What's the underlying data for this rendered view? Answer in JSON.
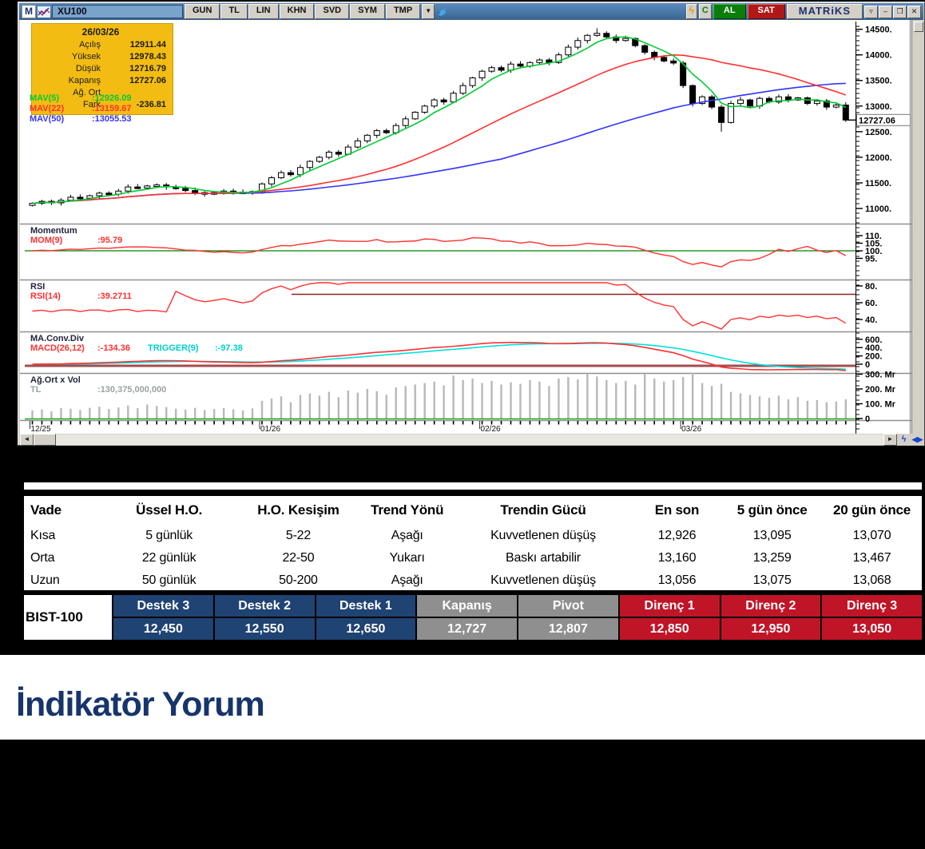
{
  "titlebar": {
    "logo": "M",
    "symbol": "XU100",
    "modes": [
      "GUN",
      "TL",
      "LIN",
      "KHN",
      "SVD",
      "SYM",
      "TMP"
    ],
    "dropdown": "▼",
    "bolt": "ϟ",
    "cycle": "C",
    "buy": "AL",
    "sell": "SAT",
    "brand": "MATRiKS",
    "win_buttons": [
      "▿",
      "–",
      "❐",
      "✕"
    ]
  },
  "infobox": {
    "date": "26/03/26",
    "rows": [
      {
        "label": "Açılış",
        "value": "12911.44"
      },
      {
        "label": "Yüksek",
        "value": "12978.43"
      },
      {
        "label": "Düşük",
        "value": "12716.79"
      },
      {
        "label": "Kapanış",
        "value": "12727.06"
      },
      {
        "label": "Ağ. Ort",
        "value": ""
      },
      {
        "label": "Fark",
        "value": "-236.81"
      }
    ]
  },
  "mav_legend": [
    {
      "label": "MAV(5)",
      "value": ":12926.09",
      "color": "#00cc33"
    },
    {
      "label": "MAV(22)",
      "value": ":13159.67",
      "color": "#ff3030"
    },
    {
      "label": "MAV(50)",
      "value": ":13055.53",
      "color": "#3333ff"
    }
  ],
  "panels": {
    "momentum": {
      "title": "Momentum",
      "legend": "MOM(9)",
      "value": ":95.79"
    },
    "rsi": {
      "title": "RSI",
      "legend": "RSI(14)",
      "value": ":39.2711"
    },
    "macd": {
      "title": "MA.Conv.Div",
      "legend": "MACD(26,12)",
      "value": ":-134.36",
      "legend2": "TRIGGER(9)",
      "value2": ":-97.38"
    },
    "volume": {
      "title": "Ağ.Ort x Vol",
      "legend": "TL",
      "value": ":130,375,000,000"
    }
  },
  "scrollbar": {
    "left": "◄",
    "right": "►",
    "quick": "ϟ",
    "nav": "◀▶"
  },
  "chart_data": {
    "type": "candlestick",
    "symbol": "XU100",
    "closes": [
      11100,
      11140,
      11110,
      11160,
      11220,
      11200,
      11250,
      11300,
      11280,
      11340,
      11420,
      11400,
      11440,
      11460,
      11420,
      11390,
      11350,
      11310,
      11290,
      11310,
      11340,
      11320,
      11300,
      11330,
      11480,
      11600,
      11700,
      11660,
      11800,
      11920,
      12000,
      12100,
      12060,
      12200,
      12320,
      12430,
      12520,
      12480,
      12620,
      12750,
      12880,
      13000,
      13120,
      13080,
      13250,
      13400,
      13550,
      13680,
      13750,
      13700,
      13820,
      13780,
      13850,
      13900,
      13850,
      14000,
      14150,
      14280,
      14380,
      14420,
      14350,
      14280,
      14320,
      14180,
      14050,
      13950,
      13880,
      13840,
      13400,
      13050,
      13180,
      12980,
      12680,
      13050,
      13120,
      13000,
      13150,
      13080,
      13180,
      13120,
      13160,
      13050,
      13100,
      12980,
      13020,
      12727
    ],
    "volumes": [
      55,
      62,
      48,
      70,
      66,
      58,
      72,
      80,
      64,
      75,
      88,
      70,
      95,
      85,
      78,
      66,
      60,
      72,
      58,
      64,
      70,
      62,
      55,
      68,
      120,
      135,
      150,
      110,
      160,
      170,
      155,
      180,
      145,
      190,
      175,
      200,
      185,
      160,
      210,
      220,
      230,
      240,
      250,
      225,
      290,
      260,
      270,
      240,
      255,
      230,
      245,
      235,
      260,
      250,
      220,
      270,
      280,
      265,
      300,
      285,
      260,
      240,
      255,
      230,
      300,
      270,
      250,
      260,
      280,
      310,
      240,
      220,
      235,
      180,
      170,
      160,
      150,
      140,
      155,
      130,
      145,
      120,
      125,
      110,
      115,
      130
    ],
    "ma_periods": [
      5,
      22,
      50
    ],
    "price_ticks": [
      {
        "v": 14500,
        "t": "14500."
      },
      {
        "v": 14000,
        "t": "14000."
      },
      {
        "v": 13500,
        "t": "13500."
      },
      {
        "v": 13000,
        "t": "13000."
      },
      {
        "v": 12500,
        "t": "12500."
      },
      {
        "v": 12000,
        "t": "12000."
      },
      {
        "v": 11500,
        "t": "11500."
      },
      {
        "v": 11000,
        "t": "11000."
      }
    ],
    "mom_ticks": [
      {
        "v": 110,
        "t": "110."
      },
      {
        "v": 105,
        "t": "105."
      },
      {
        "v": 100,
        "t": "100."
      },
      {
        "v": 95,
        "t": "95."
      }
    ],
    "rsi_ticks": [
      {
        "v": 80,
        "t": "80."
      },
      {
        "v": 60,
        "t": "60."
      },
      {
        "v": 40,
        "t": "40."
      }
    ],
    "macd_ticks": [
      {
        "v": 600,
        "t": "600."
      },
      {
        "v": 400,
        "t": "400."
      },
      {
        "v": 200,
        "t": "200."
      },
      {
        "v": 0,
        "t": "0"
      }
    ],
    "vol_ticks": [
      {
        "v": 300,
        "t": "300. Mr"
      },
      {
        "v": 200,
        "t": "200. Mr"
      },
      {
        "v": 100,
        "t": "100. Mr"
      },
      {
        "v": 0,
        "t": "0"
      }
    ],
    "x_ticks": [
      {
        "i": 0,
        "t": "12/25"
      },
      {
        "i": 24,
        "t": "01/26"
      },
      {
        "i": 47,
        "t": "02/26"
      },
      {
        "i": 68,
        "t": "03/26"
      }
    ],
    "last_price": 12727.06,
    "last_price_label": "12727.06",
    "momentum_baseline": 100,
    "rsi_hline": 70
  },
  "analysis_table": {
    "headers": [
      "Vade",
      "Üssel H.O.",
      "H.O. Kesişim",
      "Trend Yönü",
      "Trendin Gücü",
      "En son",
      "5 gün önce",
      "20 gün önce"
    ],
    "rows": [
      [
        "Kısa",
        "5 günlük",
        "5-22",
        "Aşağı",
        "Kuvvetlenen düşüş",
        "12,926",
        "13,095",
        "13,070"
      ],
      [
        "Orta",
        "22 günlük",
        "22-50",
        "Yukarı",
        "Baskı artabilir",
        "13,160",
        "13,259",
        "13,467"
      ],
      [
        "Uzun",
        "50 günlük",
        "50-200",
        "Aşağı",
        "Kuvvetlenen düşüş",
        "13,056",
        "13,075",
        "13,068"
      ]
    ]
  },
  "pivot_table": {
    "index_label": "BIST-100",
    "columns": [
      {
        "header": "Destek 3",
        "value": "12,450",
        "type": "support"
      },
      {
        "header": "Destek 2",
        "value": "12,550",
        "type": "support"
      },
      {
        "header": "Destek 1",
        "value": "12,650",
        "type": "support"
      },
      {
        "header": "Kapanış",
        "value": "12,727",
        "type": "close"
      },
      {
        "header": "Pivot",
        "value": "12,807",
        "type": "close"
      },
      {
        "header": "Direnç 1",
        "value": "12,850",
        "type": "resist"
      },
      {
        "header": "Direnç 2",
        "value": "12,950",
        "type": "resist"
      },
      {
        "header": "Direnç 3",
        "value": "13,050",
        "type": "resist"
      }
    ]
  },
  "heading": "İndikatör Yorum",
  "colors": {
    "mav5": "#00cc33",
    "mav22": "#ff3030",
    "mav50": "#3333ff",
    "support": "#1f4373",
    "close": "#8f8f8f",
    "resist": "#c01527",
    "gold": "#f3bc12",
    "heading": "#17356b"
  }
}
